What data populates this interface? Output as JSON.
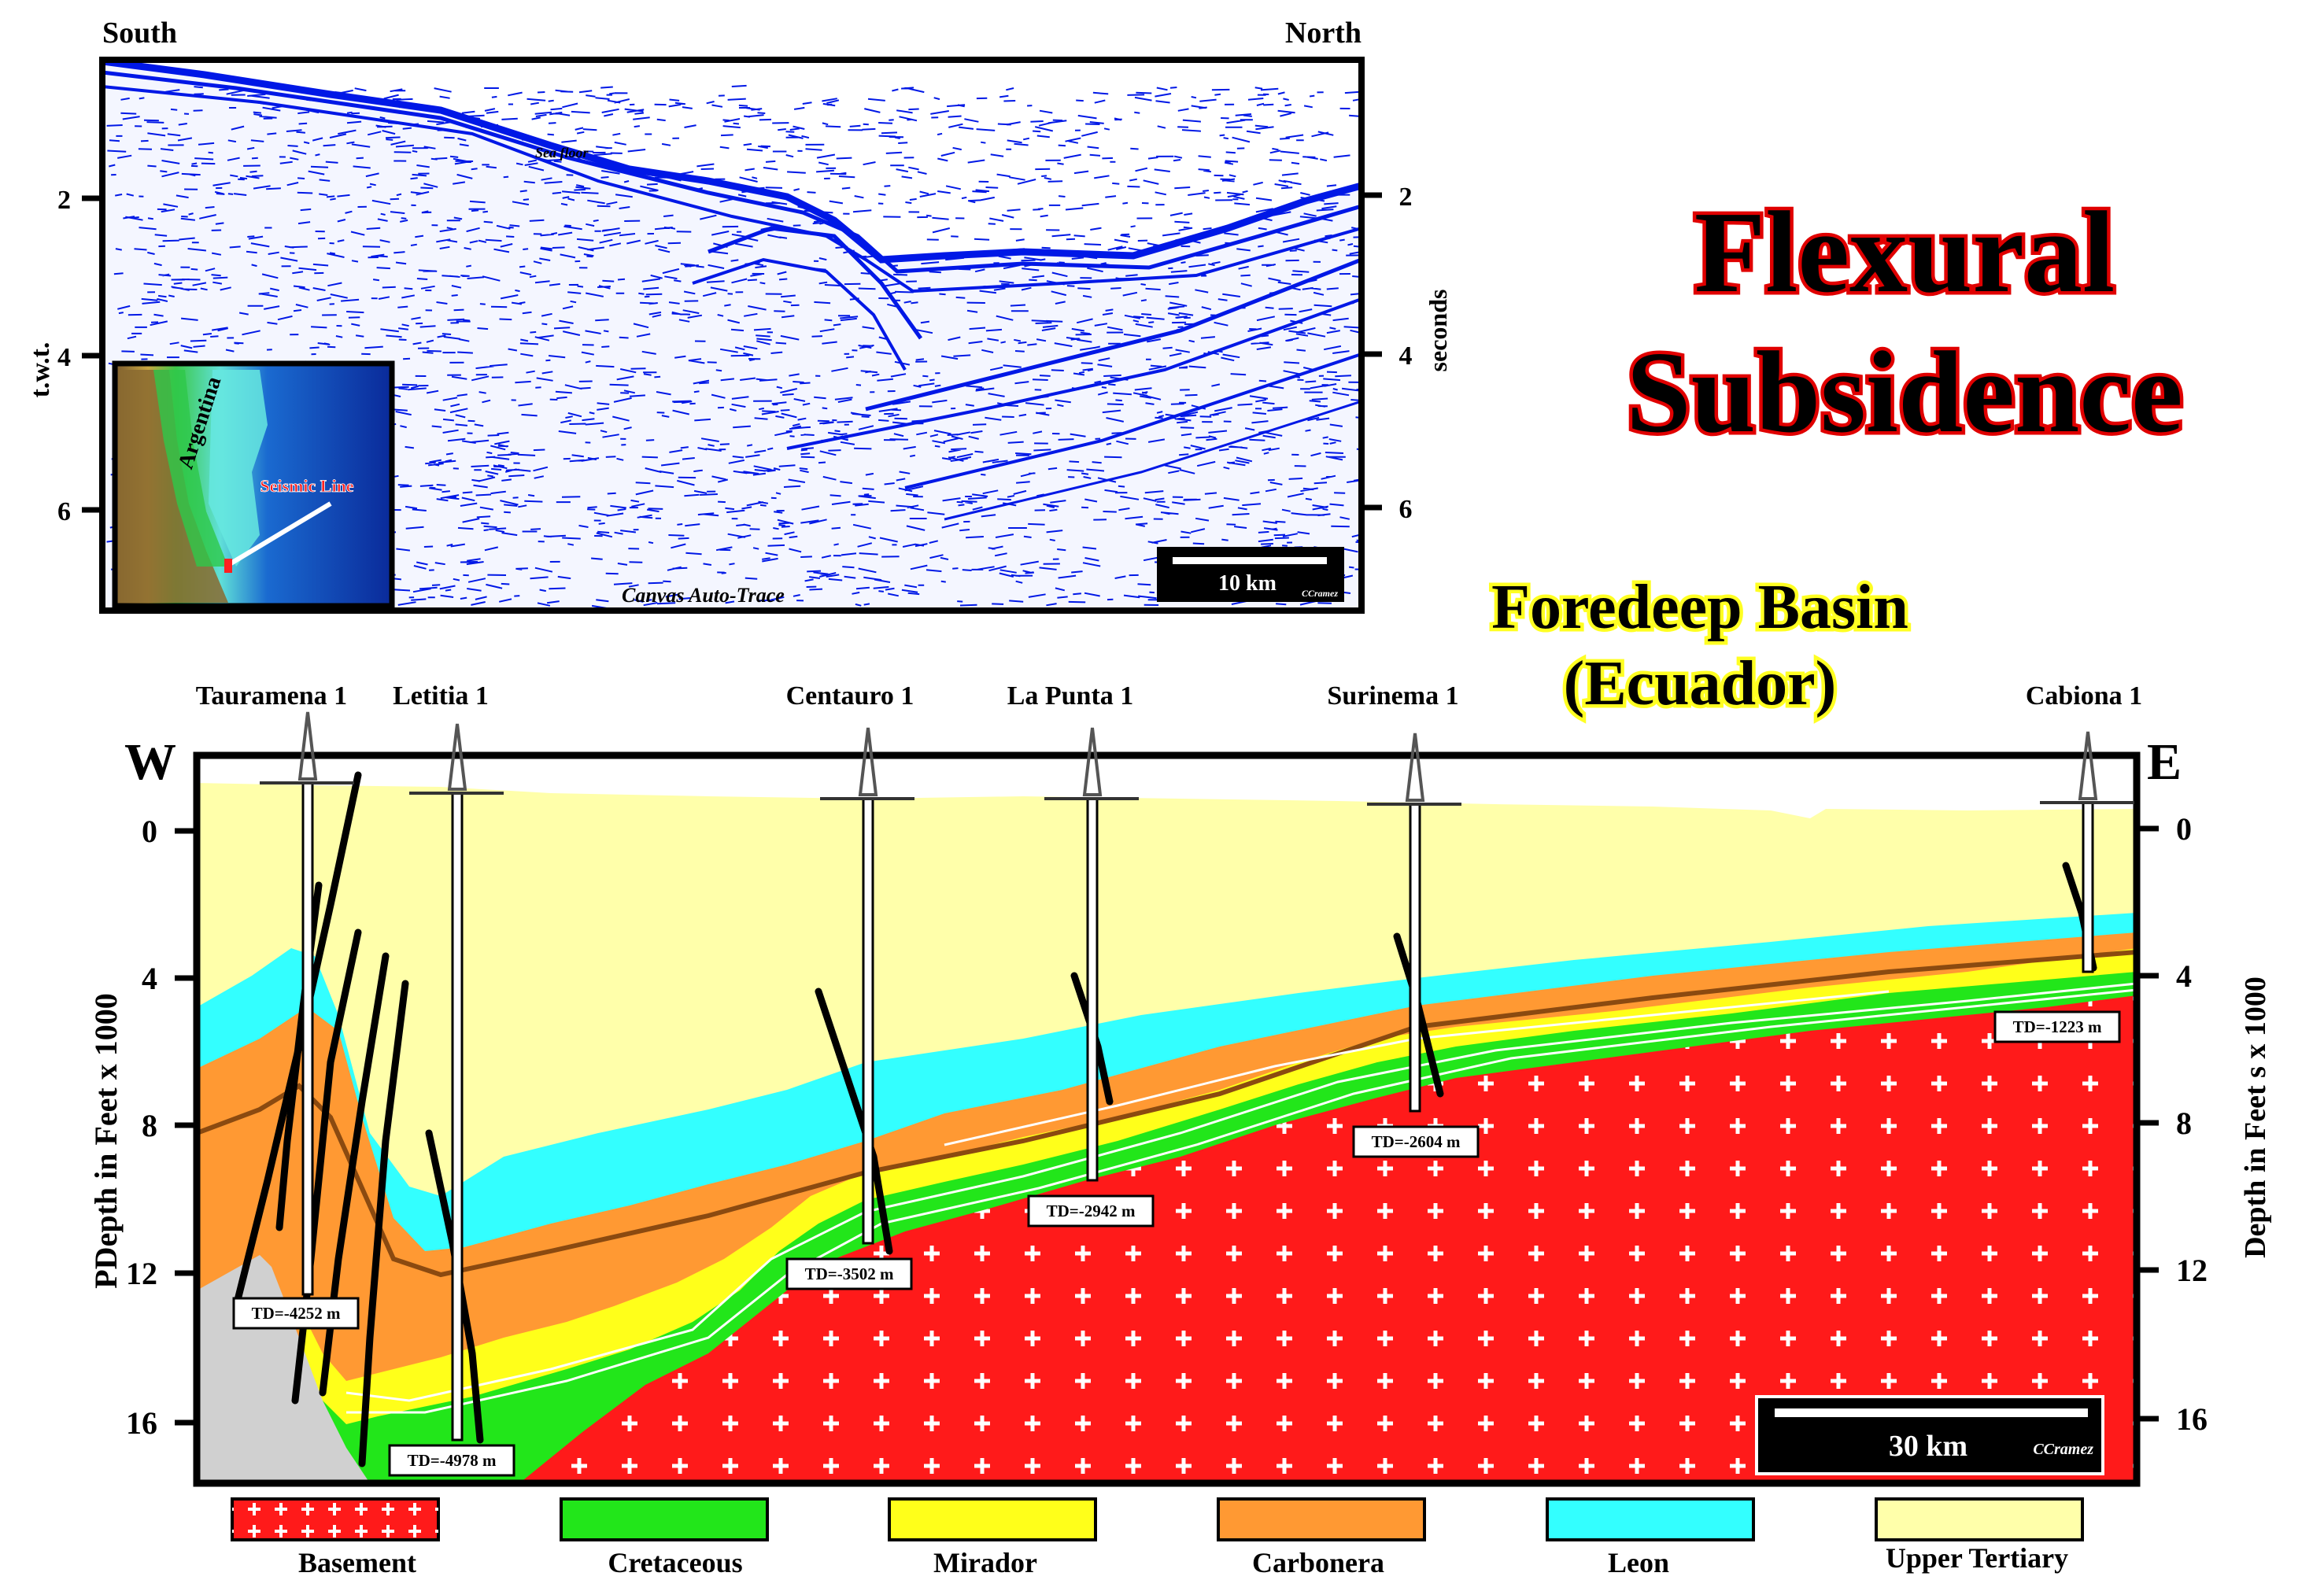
{
  "seismic": {
    "south_label": "South",
    "north_label": "North",
    "left_axis_label": "t.w.t.",
    "right_axis_label": "seconds",
    "ticks": [
      "2",
      "4",
      "6"
    ],
    "sea_floor_label": "Sea floor",
    "software_label": "Canvas Auto-Trace",
    "scale_label": "10 km",
    "scale_credit": "CCramez",
    "inset": {
      "country_label": "Argentina",
      "line_label": "Seismic Line"
    },
    "trace_color": "#0018e6"
  },
  "title": {
    "line1": "Flexural",
    "line2": "Subsidence"
  },
  "subtitle": {
    "line1": "Foredeep Basin",
    "line2": "(Ecuador)"
  },
  "section": {
    "west_label": "W",
    "east_label": "E",
    "left_axis_label": "PDepth in Feet x 1000",
    "right_axis_label": "Depth in Feet s x 1000",
    "ticks": [
      "0",
      "4",
      "8",
      "12",
      "16"
    ],
    "scale_label": "30 km",
    "scale_credit": "CCramez",
    "wells": [
      {
        "name": "Tauramena 1",
        "td": "TD=-4252 m"
      },
      {
        "name": "Letitia 1",
        "td": "TD=-4978 m"
      },
      {
        "name": "Centauro 1",
        "td": "TD=-3502 m"
      },
      {
        "name": "La Punta 1",
        "td": "TD=-2942 m"
      },
      {
        "name": "Surinema 1",
        "td": "TD=-2604 m"
      },
      {
        "name": "Cabiona 1",
        "td": "TD=-1223 m"
      }
    ]
  },
  "legend": [
    {
      "label": "Basement",
      "color": "#ff1a1a"
    },
    {
      "label": "Cretaceous",
      "color": "#22e61a"
    },
    {
      "label": "Mirador",
      "color": "#ffff1a"
    },
    {
      "label": "Carbonera",
      "color": "#ff9933"
    },
    {
      "label": "Leon",
      "color": "#33ffff"
    },
    {
      "label": "Upper Tertiary",
      "color": "#ffffaa"
    }
  ]
}
